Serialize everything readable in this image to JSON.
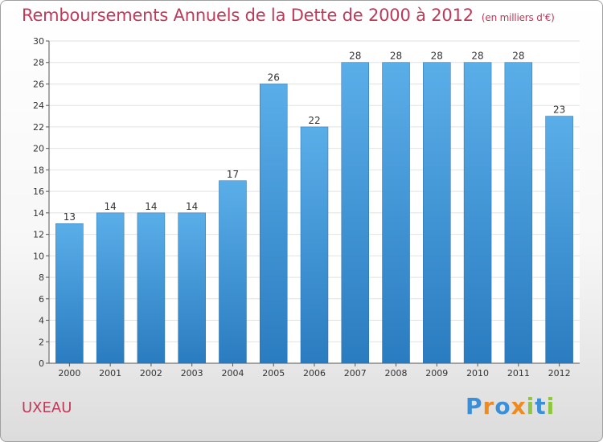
{
  "chart_data": {
    "type": "bar",
    "title": "Remboursements Annuels de la Dette de 2000 à 2012",
    "subtitle": "(en milliers d'€)",
    "categories": [
      "2000",
      "2001",
      "2002",
      "2003",
      "2004",
      "2005",
      "2006",
      "2007",
      "2008",
      "2009",
      "2010",
      "2011",
      "2012"
    ],
    "values": [
      13,
      14,
      14,
      14,
      17,
      26,
      22,
      28,
      28,
      28,
      28,
      28,
      23
    ],
    "data_labels": [
      "13",
      "14",
      "14",
      "14",
      "17",
      "26",
      "22",
      "28",
      "28",
      "28",
      "28",
      "28",
      "23"
    ],
    "xlabel": "",
    "ylabel": "",
    "ylim": [
      0,
      30
    ],
    "yticks": [
      0,
      2,
      4,
      6,
      8,
      10,
      12,
      14,
      16,
      18,
      20,
      22,
      24,
      26,
      28,
      30
    ],
    "grid": true,
    "bar_color_top": "#5aaee8",
    "bar_color_bottom": "#2a7cc0",
    "grid_color": "#e2e2e2"
  },
  "footer": {
    "commune": "UXEAU",
    "brand": [
      "P",
      "r",
      "o",
      "x",
      "i",
      "t",
      "i"
    ]
  }
}
